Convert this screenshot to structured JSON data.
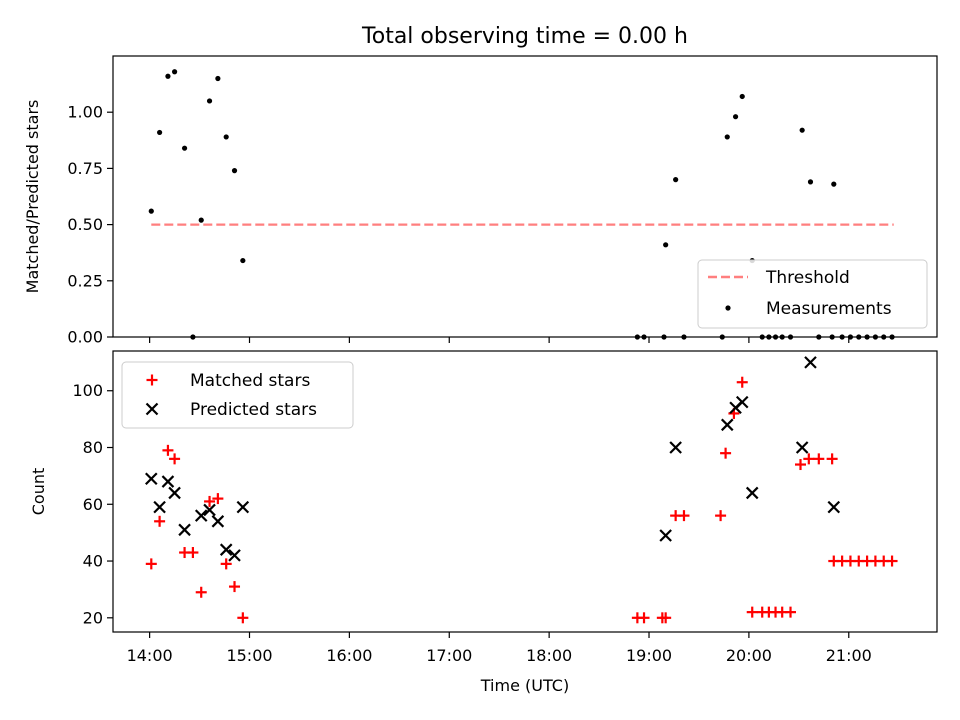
{
  "chart_data": [
    {
      "type": "scatter",
      "title": "Total observing time = 0.00 h",
      "xlabel": "",
      "ylabel": "Matched/Predicted stars",
      "xlim": [
        "13:38",
        "21:53"
      ],
      "ylim": [
        0,
        1.25
      ],
      "yticks": [
        {
          "v": 0,
          "label": "0.00"
        },
        {
          "v": 0.25,
          "label": "0.25"
        },
        {
          "v": 0.5,
          "label": "0.50"
        },
        {
          "v": 0.75,
          "label": "0.75"
        },
        {
          "v": 1.0,
          "label": "1.00"
        }
      ],
      "legend_position": "lower-right",
      "threshold": {
        "name": "Threshold",
        "x": [
          "14:01",
          "21:27"
        ],
        "y": 0.5,
        "color": "#ff7f7f",
        "style": "dashed"
      },
      "series": [
        {
          "name": "Measurements",
          "color": "#000000",
          "marker": "dot",
          "points": [
            [
              "14:01",
              0.56
            ],
            [
              "14:06",
              0.91
            ],
            [
              "14:11",
              1.16
            ],
            [
              "14:15",
              1.18
            ],
            [
              "14:21",
              0.84
            ],
            [
              "14:26",
              0.0
            ],
            [
              "14:31",
              0.52
            ],
            [
              "14:36",
              1.05
            ],
            [
              "14:41",
              1.15
            ],
            [
              "14:46",
              0.89
            ],
            [
              "14:51",
              0.74
            ],
            [
              "14:56",
              0.34
            ],
            [
              "18:53",
              0.0
            ],
            [
              "18:57",
              0.0
            ],
            [
              "19:09",
              0.0
            ],
            [
              "19:10",
              0.41
            ],
            [
              "19:16",
              0.7
            ],
            [
              "19:21",
              0.0
            ],
            [
              "19:44",
              0.0
            ],
            [
              "19:47",
              0.89
            ],
            [
              "19:52",
              0.98
            ],
            [
              "19:56",
              1.07
            ],
            [
              "20:02",
              0.34
            ],
            [
              "20:08",
              0.0
            ],
            [
              "20:12",
              0.0
            ],
            [
              "20:16",
              0.0
            ],
            [
              "20:20",
              0.0
            ],
            [
              "20:25",
              0.0
            ],
            [
              "20:32",
              0.92
            ],
            [
              "20:37",
              0.69
            ],
            [
              "20:42",
              0.0
            ],
            [
              "20:51",
              0.68
            ],
            [
              "20:50",
              0.0
            ],
            [
              "20:56",
              0.0
            ],
            [
              "21:01",
              0.0
            ],
            [
              "21:06",
              0.0
            ],
            [
              "21:11",
              0.0
            ],
            [
              "21:16",
              0.0
            ],
            [
              "21:21",
              0.0
            ],
            [
              "21:26",
              0.0
            ]
          ]
        }
      ]
    },
    {
      "type": "scatter",
      "title": "",
      "xlabel": "Time (UTC)",
      "ylabel": "Count",
      "xlim": [
        "13:38",
        "21:53"
      ],
      "ylim": [
        15,
        114
      ],
      "yticks": [
        {
          "v": 20,
          "label": "20"
        },
        {
          "v": 40,
          "label": "40"
        },
        {
          "v": 60,
          "label": "60"
        },
        {
          "v": 80,
          "label": "80"
        },
        {
          "v": 100,
          "label": "100"
        }
      ],
      "xticks": [
        {
          "v": "14:00",
          "label": "14:00"
        },
        {
          "v": "15:00",
          "label": "15:00"
        },
        {
          "v": "16:00",
          "label": "16:00"
        },
        {
          "v": "17:00",
          "label": "17:00"
        },
        {
          "v": "18:00",
          "label": "18:00"
        },
        {
          "v": "19:00",
          "label": "19:00"
        },
        {
          "v": "20:00",
          "label": "20:00"
        },
        {
          "v": "21:00",
          "label": "21:00"
        }
      ],
      "legend_position": "upper-left",
      "series": [
        {
          "name": "Matched stars",
          "color": "#ff0000",
          "marker": "plus",
          "points": [
            [
              "14:01",
              39
            ],
            [
              "14:06",
              54
            ],
            [
              "14:11",
              79
            ],
            [
              "14:15",
              76
            ],
            [
              "14:21",
              43
            ],
            [
              "14:26",
              43
            ],
            [
              "14:31",
              29
            ],
            [
              "14:36",
              61
            ],
            [
              "14:41",
              62
            ],
            [
              "14:46",
              39
            ],
            [
              "14:51",
              31
            ],
            [
              "14:56",
              20
            ],
            [
              "18:53",
              20
            ],
            [
              "18:57",
              20
            ],
            [
              "19:08",
              20
            ],
            [
              "19:10",
              20
            ],
            [
              "19:16",
              56
            ],
            [
              "19:21",
              56
            ],
            [
              "19:43",
              56
            ],
            [
              "19:46",
              78
            ],
            [
              "19:51",
              92
            ],
            [
              "19:56",
              103
            ],
            [
              "20:02",
              22
            ],
            [
              "20:08",
              22
            ],
            [
              "20:12",
              22
            ],
            [
              "20:16",
              22
            ],
            [
              "20:20",
              22
            ],
            [
              "20:25",
              22
            ],
            [
              "20:31",
              74
            ],
            [
              "20:36",
              76
            ],
            [
              "20:42",
              76
            ],
            [
              "20:50",
              76
            ],
            [
              "20:51",
              40
            ],
            [
              "20:56",
              40
            ],
            [
              "21:01",
              40
            ],
            [
              "21:06",
              40
            ],
            [
              "21:11",
              40
            ],
            [
              "21:16",
              40
            ],
            [
              "21:21",
              40
            ],
            [
              "21:26",
              40
            ]
          ]
        },
        {
          "name": "Predicted stars",
          "color": "#000000",
          "marker": "x",
          "points": [
            [
              "14:01",
              69
            ],
            [
              "14:06",
              59
            ],
            [
              "14:11",
              68
            ],
            [
              "14:15",
              64
            ],
            [
              "14:21",
              51
            ],
            [
              "14:31",
              56
            ],
            [
              "14:36",
              58
            ],
            [
              "14:41",
              54
            ],
            [
              "14:46",
              44
            ],
            [
              "14:51",
              42
            ],
            [
              "14:56",
              59
            ],
            [
              "19:10",
              49
            ],
            [
              "19:16",
              80
            ],
            [
              "19:47",
              88
            ],
            [
              "19:52",
              94
            ],
            [
              "19:56",
              96
            ],
            [
              "20:02",
              64
            ],
            [
              "20:32",
              80
            ],
            [
              "20:37",
              110
            ],
            [
              "20:51",
              59
            ]
          ]
        }
      ]
    }
  ]
}
